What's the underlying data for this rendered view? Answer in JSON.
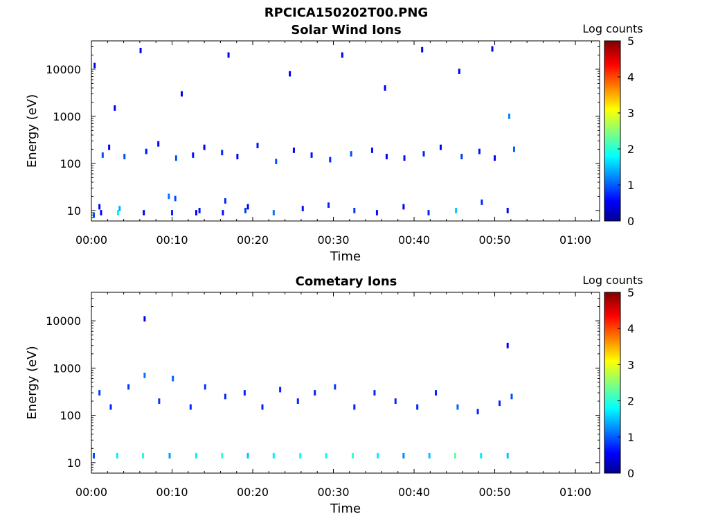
{
  "figure": {
    "title": "RPCICA150202T00.PNG"
  },
  "colorbar": {
    "label": "Log counts",
    "ticks": [
      "0",
      "1",
      "2",
      "3",
      "4",
      "5"
    ],
    "range": [
      0,
      5
    ],
    "colormap": "jet"
  },
  "chart_data": [
    {
      "type": "heatmap",
      "title": "Solar Wind Ions",
      "xlabel": "Time",
      "ylabel": "Energy (eV)",
      "x_ticks": [
        "00:00",
        "00:10",
        "00:20",
        "00:30",
        "00:40",
        "00:50",
        "01:00"
      ],
      "x_range_minutes": [
        0,
        63
      ],
      "data_end_minutes": 53,
      "y_scale": "log",
      "y_range": [
        6,
        40000
      ],
      "y_ticks": [
        "10",
        "100",
        "1000",
        "10000"
      ],
      "cells": [
        [
          0.3,
          8,
          1
        ],
        [
          1.0,
          12,
          0.5
        ],
        [
          1.2,
          9,
          0.6
        ],
        [
          3.3,
          9,
          1.8
        ],
        [
          3.5,
          11,
          1.5
        ],
        [
          6.5,
          9,
          0.6
        ],
        [
          9.6,
          20,
          1.2
        ],
        [
          10.0,
          9,
          0.8
        ],
        [
          10.4,
          18,
          1.0
        ],
        [
          13.0,
          9,
          0.6
        ],
        [
          13.4,
          10,
          0.7
        ],
        [
          16.3,
          9,
          0.7
        ],
        [
          16.6,
          16,
          0.8
        ],
        [
          19.1,
          10,
          0.9
        ],
        [
          19.4,
          12,
          0.6
        ],
        [
          22.6,
          9,
          1.2
        ],
        [
          26.2,
          11,
          0.7
        ],
        [
          29.4,
          13,
          0.8
        ],
        [
          32.6,
          10,
          0.9
        ],
        [
          35.4,
          9,
          0.7
        ],
        [
          38.7,
          12,
          0.6
        ],
        [
          41.8,
          9,
          0.8
        ],
        [
          45.2,
          10,
          1.6
        ],
        [
          48.4,
          15,
          0.8
        ],
        [
          51.6,
          10,
          0.6
        ],
        [
          1.4,
          150,
          1.0
        ],
        [
          2.2,
          220,
          0.6
        ],
        [
          4.1,
          140,
          1.0
        ],
        [
          6.8,
          180,
          0.7
        ],
        [
          8.3,
          260,
          0.6
        ],
        [
          10.5,
          130,
          1.0
        ],
        [
          12.6,
          150,
          0.7
        ],
        [
          14.0,
          220,
          0.6
        ],
        [
          16.2,
          170,
          0.8
        ],
        [
          18.1,
          140,
          0.6
        ],
        [
          20.6,
          240,
          0.7
        ],
        [
          22.9,
          110,
          1.0
        ],
        [
          25.1,
          190,
          0.6
        ],
        [
          27.3,
          150,
          0.7
        ],
        [
          29.6,
          120,
          0.8
        ],
        [
          32.2,
          160,
          1.0
        ],
        [
          34.8,
          190,
          0.7
        ],
        [
          36.6,
          140,
          0.6
        ],
        [
          38.8,
          130,
          0.7
        ],
        [
          41.2,
          160,
          0.8
        ],
        [
          43.3,
          220,
          0.6
        ],
        [
          45.9,
          140,
          0.9
        ],
        [
          48.1,
          180,
          0.7
        ],
        [
          50.0,
          130,
          0.6
        ],
        [
          51.8,
          1000,
          1.3
        ],
        [
          52.4,
          200,
          1.1
        ],
        [
          0.4,
          12000,
          0.6
        ],
        [
          2.9,
          1500,
          0.6
        ],
        [
          6.1,
          25000,
          0.6
        ],
        [
          11.2,
          3000,
          0.6
        ],
        [
          17.0,
          20000,
          0.6
        ],
        [
          24.6,
          8000,
          0.6
        ],
        [
          31.1,
          20000,
          0.6
        ],
        [
          36.4,
          4000,
          0.6
        ],
        [
          41.0,
          26000,
          0.6
        ],
        [
          45.6,
          9000,
          0.6
        ],
        [
          49.7,
          27000,
          0.6
        ]
      ]
    },
    {
      "type": "heatmap",
      "title": "Cometary Ions",
      "xlabel": "Time",
      "ylabel": "Energy (eV)",
      "x_ticks": [
        "00:00",
        "00:10",
        "00:20",
        "00:30",
        "00:40",
        "00:50",
        "01:00"
      ],
      "x_range_minutes": [
        0,
        63
      ],
      "data_end_minutes": 53,
      "y_scale": "log",
      "y_range": [
        6,
        40000
      ],
      "y_ticks": [
        "10",
        "100",
        "1000",
        "10000"
      ],
      "cells": [
        [
          0.3,
          14,
          1.0
        ],
        [
          3.2,
          14,
          1.8
        ],
        [
          6.4,
          14,
          2.0
        ],
        [
          9.7,
          14,
          1.4
        ],
        [
          13.0,
          14,
          1.8
        ],
        [
          16.2,
          14,
          2.1
        ],
        [
          19.4,
          14,
          1.6
        ],
        [
          22.6,
          14,
          1.8
        ],
        [
          25.9,
          14,
          1.9
        ],
        [
          29.1,
          14,
          1.9
        ],
        [
          32.4,
          14,
          2.1
        ],
        [
          35.5,
          14,
          1.8
        ],
        [
          38.7,
          14,
          1.3
        ],
        [
          41.9,
          14,
          1.6
        ],
        [
          45.1,
          14,
          2.3
        ],
        [
          48.3,
          14,
          1.8
        ],
        [
          51.6,
          14,
          1.6
        ],
        [
          1.0,
          300,
          0.9
        ],
        [
          2.4,
          150,
          0.8
        ],
        [
          4.6,
          400,
          0.9
        ],
        [
          6.6,
          700,
          1.2
        ],
        [
          8.4,
          200,
          0.9
        ],
        [
          10.1,
          600,
          1.1
        ],
        [
          12.3,
          150,
          0.8
        ],
        [
          14.1,
          400,
          0.9
        ],
        [
          16.6,
          250,
          0.8
        ],
        [
          19.0,
          300,
          0.8
        ],
        [
          21.2,
          150,
          0.8
        ],
        [
          23.4,
          350,
          0.8
        ],
        [
          25.6,
          200,
          0.8
        ],
        [
          27.7,
          300,
          0.8
        ],
        [
          30.2,
          400,
          0.9
        ],
        [
          32.6,
          150,
          0.8
        ],
        [
          35.1,
          300,
          0.8
        ],
        [
          37.7,
          200,
          0.8
        ],
        [
          40.4,
          150,
          0.8
        ],
        [
          42.7,
          300,
          0.8
        ],
        [
          45.4,
          150,
          1.1
        ],
        [
          47.9,
          120,
          0.8
        ],
        [
          50.6,
          180,
          0.8
        ],
        [
          52.1,
          250,
          1.0
        ],
        [
          6.6,
          11000,
          0.6
        ],
        [
          51.6,
          3000,
          0.6
        ]
      ]
    }
  ]
}
